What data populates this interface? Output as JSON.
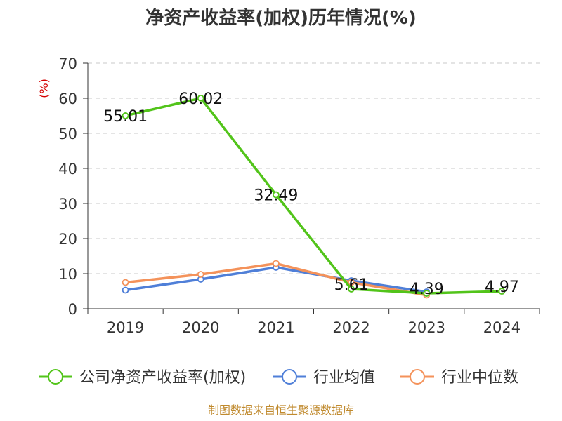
{
  "title": "净资产收益率(加权)历年情况(%)",
  "source": "制图数据来自恒生聚源数据库",
  "chart_data": {
    "type": "line",
    "title": "净资产收益率(加权)历年情况(%)",
    "ylabel": "(%)",
    "categories": [
      "2019",
      "2020",
      "2021",
      "2022",
      "2023",
      "2024"
    ],
    "ylim": [
      0,
      70
    ],
    "yticks": [
      "0",
      "10",
      "20",
      "30",
      "40",
      "50",
      "60",
      "70"
    ],
    "grid": true,
    "legend_position": "bottom",
    "series": [
      {
        "name": "公司净资产收益率(加权)",
        "color": "#52c41a",
        "values": [
          55.01,
          60.02,
          32.49,
          5.61,
          4.39,
          4.97
        ],
        "labels": [
          "55.01",
          "60.02",
          "32.49",
          "5.61",
          "4.39",
          "4.97"
        ]
      },
      {
        "name": "行业均值",
        "color": "#4f7fd8",
        "values": [
          5.3,
          8.4,
          11.8,
          8.0,
          4.8,
          null
        ],
        "labels": []
      },
      {
        "name": "行业中位数",
        "color": "#f4925a",
        "values": [
          7.5,
          9.8,
          12.9,
          7.5,
          3.9,
          null
        ],
        "labels": []
      }
    ]
  }
}
